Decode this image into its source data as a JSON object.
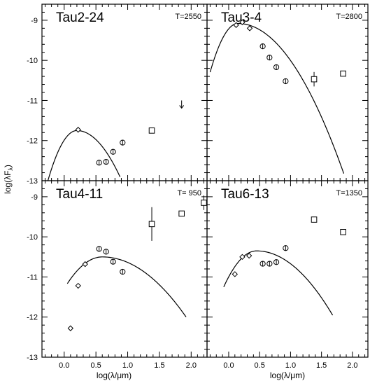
{
  "chart_data": {
    "type": "scatter",
    "layout": "2x2 grid with shared axes",
    "xlabel": "log(λ/μm)",
    "ylabel": "log(λF",
    "ylabel_sub": "λ",
    "ylabel_close": ")",
    "xlim": [
      -0.35,
      2.25
    ],
    "ylim": [
      -13,
      -8.6
    ],
    "xticks": [
      0.0,
      0.5,
      1.0,
      1.5,
      2.0
    ],
    "xtick_labels": [
      "0.0",
      "0.5",
      "1.0",
      "1.5",
      "2.0"
    ],
    "yticks": [
      -13,
      -12,
      -11,
      -10,
      -9
    ],
    "ytick_labels": [
      "-13",
      "-12",
      "-11",
      "-10",
      "-9"
    ],
    "grid": false,
    "panels": [
      {
        "title": "Tau2-24",
        "temperature_label": "T=2550",
        "model_curve": {
          "peak_x": 0.2,
          "peak_y": -11.75,
          "left_x": -0.3,
          "right_x": 0.88,
          "rise_k": 6.0,
          "fall_k": 2.5
        },
        "diamonds": [
          {
            "x": 0.22,
            "y": -11.73
          }
        ],
        "circles": [
          {
            "x": 0.55,
            "y": -12.55
          },
          {
            "x": 0.66,
            "y": -12.53
          },
          {
            "x": 0.77,
            "y": -12.28
          },
          {
            "x": 0.92,
            "y": -12.05
          }
        ],
        "squares": [
          {
            "x": 1.38,
            "y": -11.75
          }
        ],
        "upper_limits": [
          {
            "x": 1.85,
            "y": -11.0
          }
        ]
      },
      {
        "title": "Tau3-4",
        "temperature_label": "T=2800",
        "model_curve": {
          "peak_x": 0.15,
          "peak_y": -9.08,
          "left_x": -0.3,
          "right_x": 1.86,
          "rise_k": 6.0,
          "fall_k": 1.28
        },
        "diamonds": [
          {
            "x": 0.12,
            "y": -9.12
          },
          {
            "x": 0.22,
            "y": -9.05
          },
          {
            "x": 0.34,
            "y": -9.2
          }
        ],
        "circles": [
          {
            "x": 0.55,
            "y": -9.65
          },
          {
            "x": 0.66,
            "y": -9.93
          },
          {
            "x": 0.77,
            "y": -10.17
          },
          {
            "x": 0.92,
            "y": -10.52
          }
        ],
        "squares": [
          {
            "x": 1.38,
            "y": -10.47,
            "err": 0.18
          },
          {
            "x": 1.85,
            "y": -10.33
          }
        ]
      },
      {
        "title": "Tau4-11",
        "temperature_label": "T= 950",
        "model_curve": {
          "peak_x": 0.6,
          "peak_y": -10.5,
          "left_x": 0.05,
          "right_x": 1.92,
          "rise_k": 2.2,
          "fall_k": 0.86
        },
        "diamonds": [
          {
            "x": 0.1,
            "y": -12.28
          },
          {
            "x": 0.22,
            "y": -11.22
          },
          {
            "x": 0.33,
            "y": -10.68
          }
        ],
        "circles": [
          {
            "x": 0.55,
            "y": -10.3
          },
          {
            "x": 0.66,
            "y": -10.37
          },
          {
            "x": 0.77,
            "y": -10.62
          },
          {
            "x": 0.92,
            "y": -10.87
          }
        ],
        "squares": [
          {
            "x": 1.38,
            "y": -9.68,
            "err": 0.42
          },
          {
            "x": 1.85,
            "y": -9.42
          },
          {
            "x": 2.2,
            "y": -9.15,
            "err": 0.18
          }
        ]
      },
      {
        "title": "Tau6-13",
        "temperature_label": "T=1350",
        "model_curve": {
          "peak_x": 0.45,
          "peak_y": -10.35,
          "left_x": -0.08,
          "right_x": 1.68,
          "rise_k": 3.2,
          "fall_k": 1.06
        },
        "diamonds": [
          {
            "x": 0.1,
            "y": -10.93
          },
          {
            "x": 0.22,
            "y": -10.5
          },
          {
            "x": 0.33,
            "y": -10.47
          }
        ],
        "circles": [
          {
            "x": 0.55,
            "y": -10.67
          },
          {
            "x": 0.66,
            "y": -10.67
          },
          {
            "x": 0.77,
            "y": -10.63
          },
          {
            "x": 0.92,
            "y": -10.28
          }
        ],
        "squares": [
          {
            "x": 1.38,
            "y": -9.57
          },
          {
            "x": 1.85,
            "y": -9.88
          }
        ]
      }
    ]
  }
}
